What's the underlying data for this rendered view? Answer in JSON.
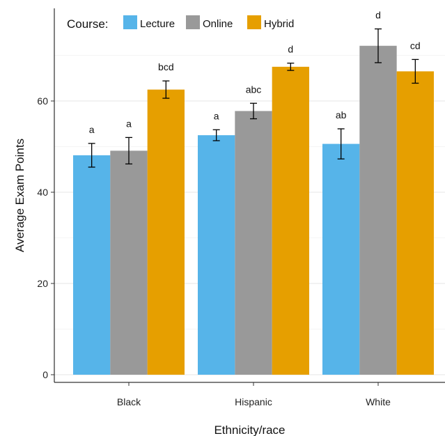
{
  "chart_data": {
    "type": "bar",
    "xlabel": "Ethnicity/race",
    "ylabel": "Average Exam Points",
    "ylim": [
      0,
      80
    ],
    "yticks": [
      0,
      20,
      40,
      60
    ],
    "grid": true,
    "legend": {
      "title": "Course:",
      "placement": "top-left"
    },
    "categories": [
      "Black",
      "Hispanic",
      "White"
    ],
    "series": [
      {
        "name": "Lecture",
        "color": "#56B4E9",
        "values": [
          48.1,
          52.5,
          50.6
        ],
        "errors": [
          2.6,
          1.2,
          3.3
        ],
        "labels": [
          "a",
          "a",
          "ab"
        ]
      },
      {
        "name": "Online",
        "color": "#999999",
        "values": [
          49.1,
          57.8,
          72.1
        ],
        "errors": [
          2.9,
          1.7,
          3.7
        ],
        "labels": [
          "a",
          "abc",
          "d"
        ]
      },
      {
        "name": "Hybrid",
        "color": "#E69F00",
        "values": [
          62.5,
          67.5,
          66.5
        ],
        "errors": [
          1.9,
          0.8,
          2.6
        ],
        "labels": [
          "bcd",
          "d",
          "cd"
        ]
      }
    ]
  }
}
